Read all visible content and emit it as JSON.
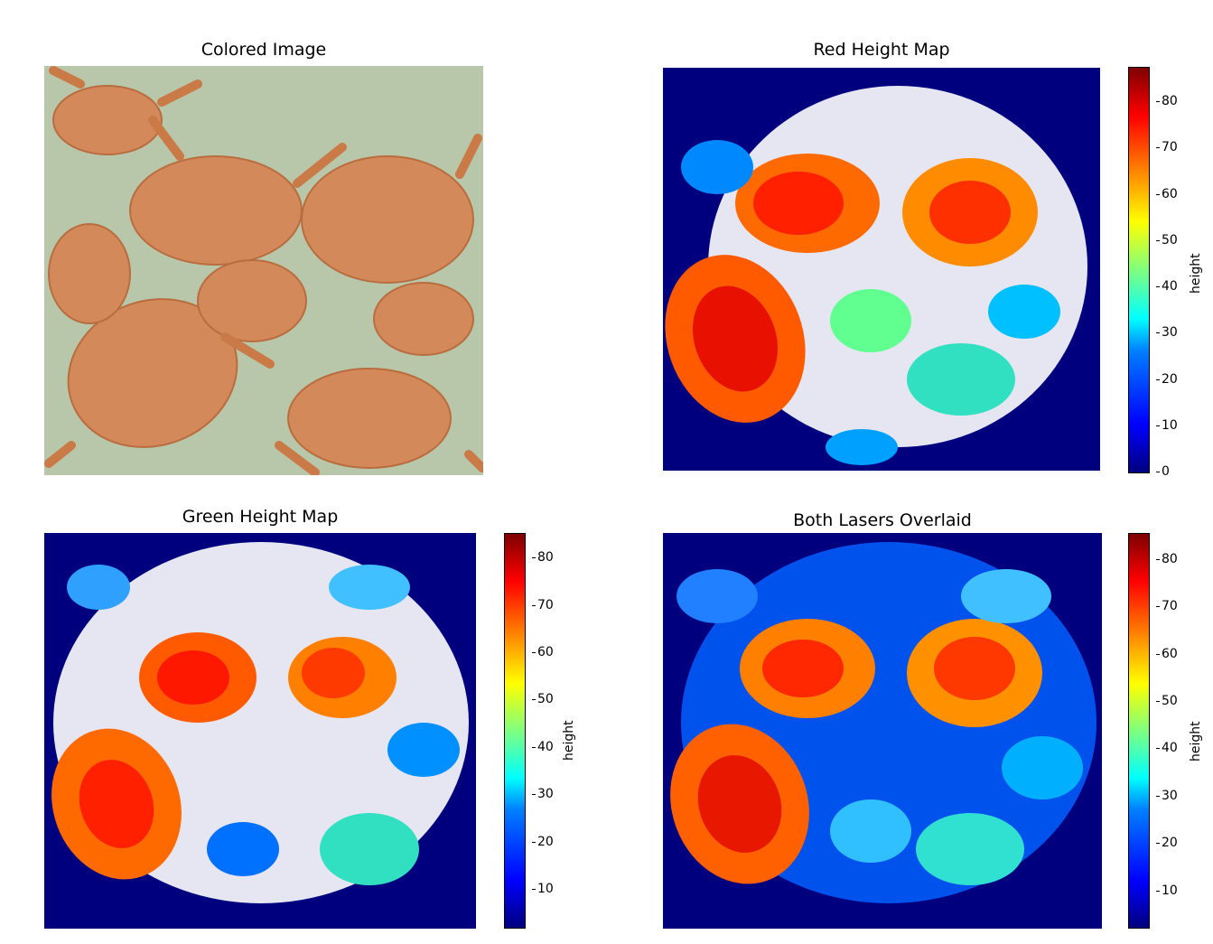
{
  "panels": {
    "colored": {
      "title": "Colored Image"
    },
    "red": {
      "title": "Red Height Map"
    },
    "green": {
      "title": "Green Height Map"
    },
    "both": {
      "title": "Both Lasers Overlaid"
    }
  },
  "colorbars": {
    "red": {
      "label": "height",
      "ticks": [
        "80",
        "70",
        "60",
        "50",
        "40",
        "30",
        "20",
        "10",
        "0"
      ]
    },
    "green": {
      "label": "height",
      "ticks": [
        "80",
        "70",
        "60",
        "50",
        "40",
        "30",
        "20",
        "10"
      ]
    },
    "both": {
      "label": "height",
      "ticks": [
        "80",
        "70",
        "60",
        "50",
        "40",
        "30",
        "20",
        "10"
      ]
    }
  },
  "colors": {
    "background_map": "#00007f",
    "crab_photo": "#d9905a",
    "photo_bg": "#b7c7a8"
  }
}
